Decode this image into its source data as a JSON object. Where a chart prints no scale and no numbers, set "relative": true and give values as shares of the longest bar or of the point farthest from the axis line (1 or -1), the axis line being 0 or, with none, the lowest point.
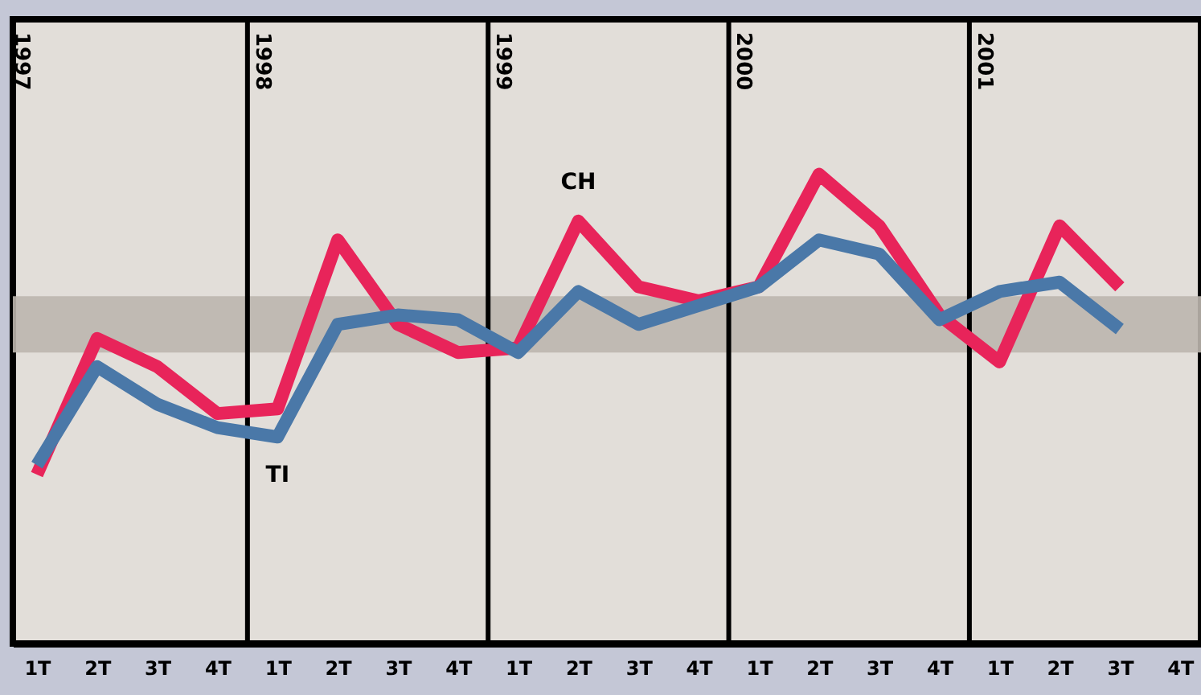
{
  "chart_data": {
    "type": "line",
    "relative": true,
    "grid": false,
    "line_style": "solid",
    "marker": "none",
    "categories": [
      "1T",
      "2T",
      "3T",
      "4T",
      "1T",
      "2T",
      "3T",
      "4T",
      "1T",
      "2T",
      "3T",
      "4T",
      "1T",
      "2T",
      "3T",
      "4T",
      "1T",
      "2T",
      "3T",
      "4T"
    ],
    "series": [
      {
        "name": "CH",
        "color": "#e8245a",
        "values": [
          0.36,
          0.65,
          0.59,
          0.49,
          0.5,
          0.86,
          0.68,
          0.62,
          0.63,
          0.9,
          0.76,
          0.73,
          0.76,
          1.0,
          0.89,
          0.7,
          0.6,
          0.89,
          0.76,
          null
        ]
      },
      {
        "name": "TI",
        "color": "#4a78a8",
        "values": [
          0.38,
          0.59,
          0.51,
          0.46,
          0.44,
          0.68,
          0.7,
          0.69,
          0.62,
          0.75,
          0.68,
          0.72,
          0.76,
          0.86,
          0.83,
          0.69,
          0.75,
          0.77,
          0.67,
          null
        ]
      }
    ],
    "bands": [
      {
        "axis": "y",
        "from": 0.62,
        "to": 0.74,
        "color": "#bdb6ae"
      }
    ],
    "annotations": [
      "1997",
      "1998",
      "1999",
      "2000",
      "2001"
    ]
  }
}
